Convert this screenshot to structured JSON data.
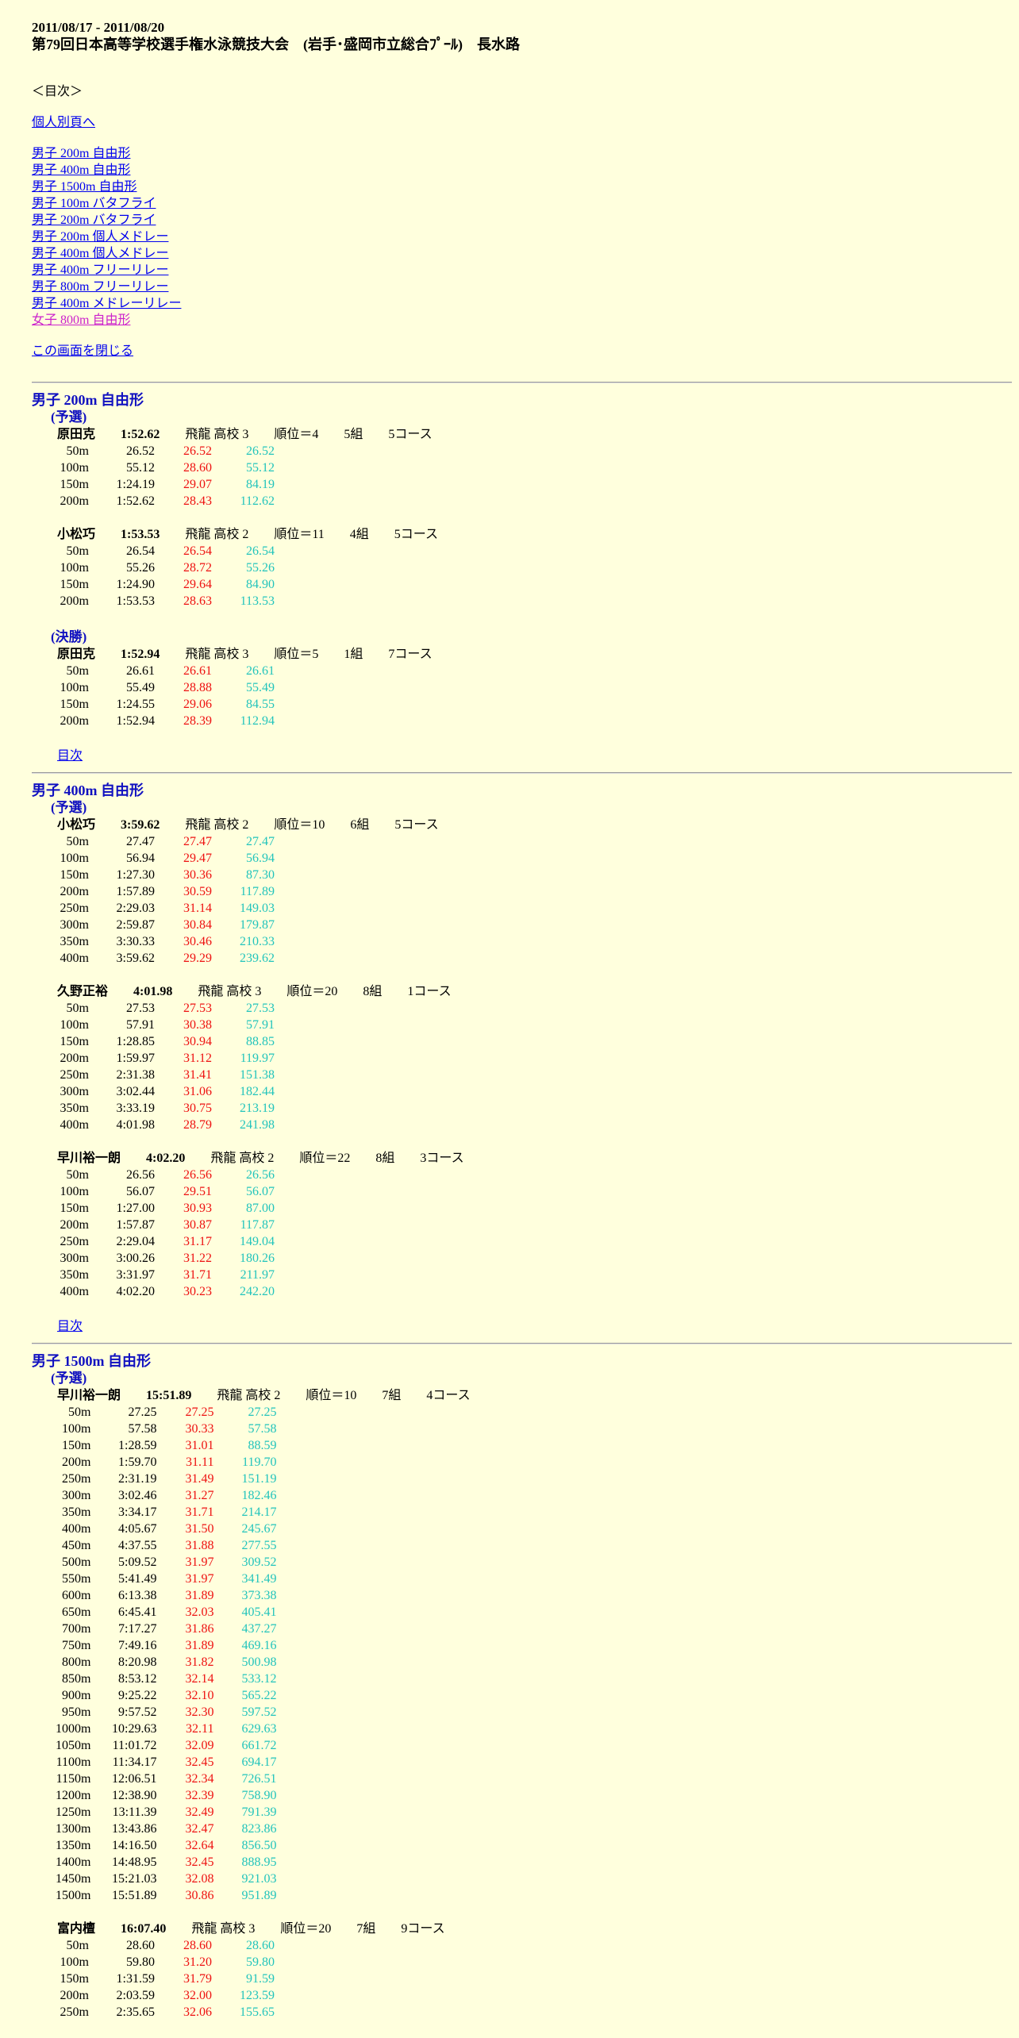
{
  "header": {
    "date": "2011/08/17 - 2011/08/20",
    "title": "第79回日本高等学校選手権水泳競技大会　(岩手･盛岡市立総合ﾌﾟｰﾙ)　長水路"
  },
  "toc": {
    "heading": "＜目次＞",
    "individual_link": "個人別頁へ",
    "events": [
      {
        "label": "男子 200m 自由形",
        "visited": false
      },
      {
        "label": "男子 400m 自由形",
        "visited": false
      },
      {
        "label": "男子 1500m 自由形",
        "visited": false
      },
      {
        "label": "男子 100m バタフライ",
        "visited": false
      },
      {
        "label": "男子 200m バタフライ",
        "visited": false
      },
      {
        "label": "男子 200m 個人メドレー",
        "visited": false
      },
      {
        "label": "男子 400m 個人メドレー",
        "visited": false
      },
      {
        "label": "男子 400m フリーリレー",
        "visited": false
      },
      {
        "label": "男子 800m フリーリレー",
        "visited": false
      },
      {
        "label": "男子 400m メドレーリレー",
        "visited": false
      },
      {
        "label": "女子 800m 自由形",
        "visited": true
      }
    ],
    "close_link": "この画面を閉じる"
  },
  "colors": {
    "background": "#ffffdd",
    "heading": "#1010c0",
    "lap": "#ee1111",
    "cumulative": "#22c4bc",
    "link": "#0000ee",
    "visited_link": "#cc22cc"
  },
  "events": [
    {
      "title": "男子 200m 自由形",
      "back": "目次",
      "rounds": [
        {
          "label": "(予選)",
          "swimmers": [
            {
              "name": "原田克",
              "time": "1:52.62",
              "school": "飛龍 高校 3",
              "rank": "順位＝4",
              "group": "5組",
              "course": "5コース",
              "splits": [
                [
                  "50m",
                  "26.52",
                  "26.52",
                  "26.52"
                ],
                [
                  "100m",
                  "55.12",
                  "28.60",
                  "55.12"
                ],
                [
                  "150m",
                  "1:24.19",
                  "29.07",
                  "84.19"
                ],
                [
                  "200m",
                  "1:52.62",
                  "28.43",
                  "112.62"
                ]
              ]
            },
            {
              "name": "小松巧",
              "time": "1:53.53",
              "school": "飛龍 高校 2",
              "rank": "順位＝11",
              "group": "4組",
              "course": "5コース",
              "splits": [
                [
                  "50m",
                  "26.54",
                  "26.54",
                  "26.54"
                ],
                [
                  "100m",
                  "55.26",
                  "28.72",
                  "55.26"
                ],
                [
                  "150m",
                  "1:24.90",
                  "29.64",
                  "84.90"
                ],
                [
                  "200m",
                  "1:53.53",
                  "28.63",
                  "113.53"
                ]
              ]
            }
          ]
        },
        {
          "label": "(決勝)",
          "swimmers": [
            {
              "name": "原田克",
              "time": "1:52.94",
              "school": "飛龍 高校 3",
              "rank": "順位＝5",
              "group": "1組",
              "course": "7コース",
              "splits": [
                [
                  "50m",
                  "26.61",
                  "26.61",
                  "26.61"
                ],
                [
                  "100m",
                  "55.49",
                  "28.88",
                  "55.49"
                ],
                [
                  "150m",
                  "1:24.55",
                  "29.06",
                  "84.55"
                ],
                [
                  "200m",
                  "1:52.94",
                  "28.39",
                  "112.94"
                ]
              ]
            }
          ]
        }
      ]
    },
    {
      "title": "男子 400m 自由形",
      "back": "目次",
      "rounds": [
        {
          "label": "(予選)",
          "swimmers": [
            {
              "name": "小松巧",
              "time": "3:59.62",
              "school": "飛龍 高校 2",
              "rank": "順位＝10",
              "group": "6組",
              "course": "5コース",
              "splits": [
                [
                  "50m",
                  "27.47",
                  "27.47",
                  "27.47"
                ],
                [
                  "100m",
                  "56.94",
                  "29.47",
                  "56.94"
                ],
                [
                  "150m",
                  "1:27.30",
                  "30.36",
                  "87.30"
                ],
                [
                  "200m",
                  "1:57.89",
                  "30.59",
                  "117.89"
                ],
                [
                  "250m",
                  "2:29.03",
                  "31.14",
                  "149.03"
                ],
                [
                  "300m",
                  "2:59.87",
                  "30.84",
                  "179.87"
                ],
                [
                  "350m",
                  "3:30.33",
                  "30.46",
                  "210.33"
                ],
                [
                  "400m",
                  "3:59.62",
                  "29.29",
                  "239.62"
                ]
              ]
            },
            {
              "name": "久野正裕",
              "time": "4:01.98",
              "school": "飛龍 高校 3",
              "rank": "順位＝20",
              "group": "8組",
              "course": "1コース",
              "splits": [
                [
                  "50m",
                  "27.53",
                  "27.53",
                  "27.53"
                ],
                [
                  "100m",
                  "57.91",
                  "30.38",
                  "57.91"
                ],
                [
                  "150m",
                  "1:28.85",
                  "30.94",
                  "88.85"
                ],
                [
                  "200m",
                  "1:59.97",
                  "31.12",
                  "119.97"
                ],
                [
                  "250m",
                  "2:31.38",
                  "31.41",
                  "151.38"
                ],
                [
                  "300m",
                  "3:02.44",
                  "31.06",
                  "182.44"
                ],
                [
                  "350m",
                  "3:33.19",
                  "30.75",
                  "213.19"
                ],
                [
                  "400m",
                  "4:01.98",
                  "28.79",
                  "241.98"
                ]
              ]
            },
            {
              "name": "早川裕一朗",
              "time": "4:02.20",
              "school": "飛龍 高校 2",
              "rank": "順位＝22",
              "group": "8組",
              "course": "3コース",
              "splits": [
                [
                  "50m",
                  "26.56",
                  "26.56",
                  "26.56"
                ],
                [
                  "100m",
                  "56.07",
                  "29.51",
                  "56.07"
                ],
                [
                  "150m",
                  "1:27.00",
                  "30.93",
                  "87.00"
                ],
                [
                  "200m",
                  "1:57.87",
                  "30.87",
                  "117.87"
                ],
                [
                  "250m",
                  "2:29.04",
                  "31.17",
                  "149.04"
                ],
                [
                  "300m",
                  "3:00.26",
                  "31.22",
                  "180.26"
                ],
                [
                  "350m",
                  "3:31.97",
                  "31.71",
                  "211.97"
                ],
                [
                  "400m",
                  "4:02.20",
                  "30.23",
                  "242.20"
                ]
              ]
            }
          ]
        }
      ]
    },
    {
      "title": "男子 1500m 自由形",
      "rounds": [
        {
          "label": "(予選)",
          "swimmers": [
            {
              "name": "早川裕一朗",
              "time": "15:51.89",
              "school": "飛龍 高校 2",
              "rank": "順位＝10",
              "group": "7組",
              "course": "4コース",
              "splits": [
                [
                  "50m",
                  "27.25",
                  "27.25",
                  "27.25"
                ],
                [
                  "100m",
                  "57.58",
                  "30.33",
                  "57.58"
                ],
                [
                  "150m",
                  "1:28.59",
                  "31.01",
                  "88.59"
                ],
                [
                  "200m",
                  "1:59.70",
                  "31.11",
                  "119.70"
                ],
                [
                  "250m",
                  "2:31.19",
                  "31.49",
                  "151.19"
                ],
                [
                  "300m",
                  "3:02.46",
                  "31.27",
                  "182.46"
                ],
                [
                  "350m",
                  "3:34.17",
                  "31.71",
                  "214.17"
                ],
                [
                  "400m",
                  "4:05.67",
                  "31.50",
                  "245.67"
                ],
                [
                  "450m",
                  "4:37.55",
                  "31.88",
                  "277.55"
                ],
                [
                  "500m",
                  "5:09.52",
                  "31.97",
                  "309.52"
                ],
                [
                  "550m",
                  "5:41.49",
                  "31.97",
                  "341.49"
                ],
                [
                  "600m",
                  "6:13.38",
                  "31.89",
                  "373.38"
                ],
                [
                  "650m",
                  "6:45.41",
                  "32.03",
                  "405.41"
                ],
                [
                  "700m",
                  "7:17.27",
                  "31.86",
                  "437.27"
                ],
                [
                  "750m",
                  "7:49.16",
                  "31.89",
                  "469.16"
                ],
                [
                  "800m",
                  "8:20.98",
                  "31.82",
                  "500.98"
                ],
                [
                  "850m",
                  "8:53.12",
                  "32.14",
                  "533.12"
                ],
                [
                  "900m",
                  "9:25.22",
                  "32.10",
                  "565.22"
                ],
                [
                  "950m",
                  "9:57.52",
                  "32.30",
                  "597.52"
                ],
                [
                  "1000m",
                  "10:29.63",
                  "32.11",
                  "629.63"
                ],
                [
                  "1050m",
                  "11:01.72",
                  "32.09",
                  "661.72"
                ],
                [
                  "1100m",
                  "11:34.17",
                  "32.45",
                  "694.17"
                ],
                [
                  "1150m",
                  "12:06.51",
                  "32.34",
                  "726.51"
                ],
                [
                  "1200m",
                  "12:38.90",
                  "32.39",
                  "758.90"
                ],
                [
                  "1250m",
                  "13:11.39",
                  "32.49",
                  "791.39"
                ],
                [
                  "1300m",
                  "13:43.86",
                  "32.47",
                  "823.86"
                ],
                [
                  "1350m",
                  "14:16.50",
                  "32.64",
                  "856.50"
                ],
                [
                  "1400m",
                  "14:48.95",
                  "32.45",
                  "888.95"
                ],
                [
                  "1450m",
                  "15:21.03",
                  "32.08",
                  "921.03"
                ],
                [
                  "1500m",
                  "15:51.89",
                  "30.86",
                  "951.89"
                ]
              ]
            },
            {
              "name": "富内檀",
              "time": "16:07.40",
              "school": "飛龍 高校 3",
              "rank": "順位＝20",
              "group": "7組",
              "course": "9コース",
              "splits": [
                [
                  "50m",
                  "28.60",
                  "28.60",
                  "28.60"
                ],
                [
                  "100m",
                  "59.80",
                  "31.20",
                  "59.80"
                ],
                [
                  "150m",
                  "1:31.59",
                  "31.79",
                  "91.59"
                ],
                [
                  "200m",
                  "2:03.59",
                  "32.00",
                  "123.59"
                ],
                [
                  "250m",
                  "2:35.65",
                  "32.06",
                  "155.65"
                ]
              ]
            }
          ]
        }
      ]
    }
  ]
}
